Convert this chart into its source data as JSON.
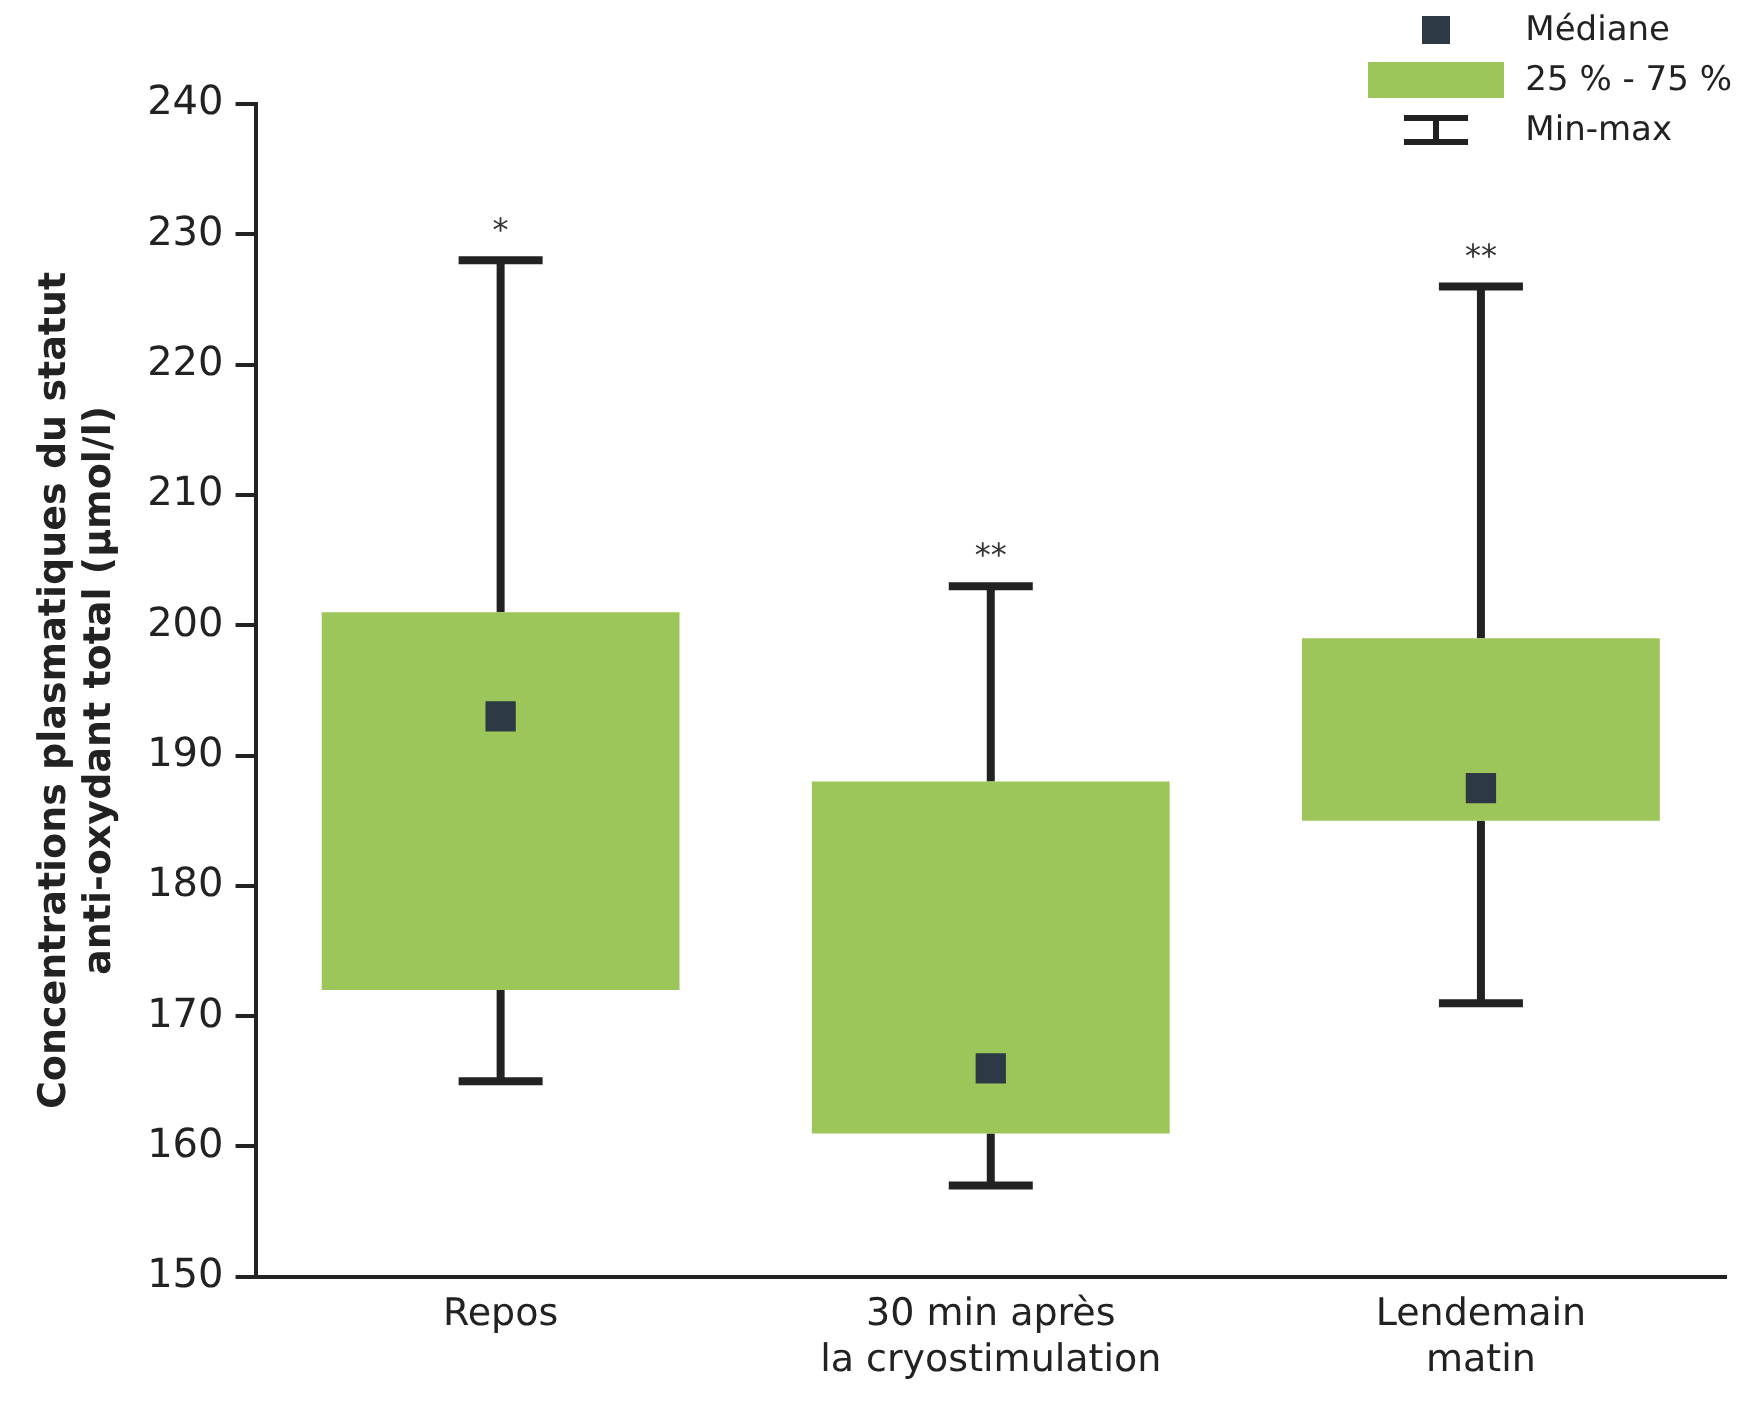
{
  "chart_data": {
    "type": "box",
    "ylabel": "Concentrations plasmatiques du statut\nanti-oxydant total (µmol/l)",
    "categories": [
      "Repos",
      "30 min après\nla cryostimulation",
      "Lendemain\nmatin"
    ],
    "series": [
      {
        "name": "25 % - 75 %",
        "color": "#9dc65a",
        "boxes": [
          {
            "low": 165,
            "q1": 172,
            "median": 193,
            "q3": 201,
            "high": 228
          },
          {
            "low": 157,
            "q1": 161,
            "median": 166,
            "q3": 188,
            "high": 203
          },
          {
            "low": 171,
            "q1": 185,
            "median": 187.5,
            "q3": 199,
            "high": 226
          }
        ]
      }
    ],
    "ylim": [
      150,
      240
    ],
    "yticks": [
      150,
      160,
      170,
      180,
      190,
      200,
      210,
      220,
      230,
      240
    ],
    "grid": false,
    "legend": "top right",
    "marker": "square",
    "annotations": [
      {
        "text": "*",
        "x": "Repos",
        "y": 228
      },
      {
        "text": "**",
        "x": "30 min après\nla cryostimulation",
        "y": 203
      },
      {
        "text": "**",
        "x": "Lendemain\nmatin",
        "y": 226
      },
      "Médiane",
      "Min-max"
    ]
  }
}
